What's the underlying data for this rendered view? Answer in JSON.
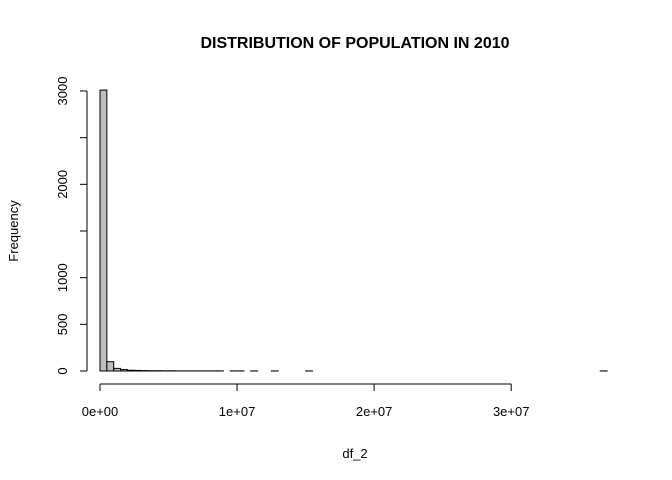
{
  "chart_data": {
    "type": "bar",
    "title": "DISTRIBUTION OF POPULATION IN 2010",
    "xlabel": "df_2",
    "ylabel": "Frequency",
    "xlim": [
      0,
      37500000
    ],
    "ylim": [
      0,
      3000
    ],
    "x_ticks": [
      {
        "value": 0,
        "label": "0e+00"
      },
      {
        "value": 10000000,
        "label": "1e+07"
      },
      {
        "value": 20000000,
        "label": "2e+07"
      },
      {
        "value": 30000000,
        "label": "3e+07"
      }
    ],
    "y_ticks": [
      {
        "value": 0,
        "label": "0"
      },
      {
        "value": 500,
        "label": "500"
      },
      {
        "value": 1000,
        "label": "1000"
      },
      {
        "value": 1500,
        "label": ""
      },
      {
        "value": 2000,
        "label": "2000"
      },
      {
        "value": 2500,
        "label": ""
      },
      {
        "value": 3000,
        "label": "3000"
      }
    ],
    "bin_width": 500000,
    "bin_start": 0,
    "values": [
      3010,
      100,
      28,
      15,
      8,
      6,
      4,
      3,
      3,
      2,
      2,
      1,
      1,
      1,
      1,
      1,
      1,
      1,
      0,
      1,
      1,
      0,
      1,
      0,
      0,
      1,
      0,
      0,
      0,
      0,
      1,
      0,
      0,
      0,
      0,
      0,
      0,
      0,
      0,
      0,
      0,
      0,
      0,
      0,
      0,
      0,
      0,
      0,
      0,
      0,
      0,
      0,
      0,
      0,
      0,
      0,
      0,
      0,
      0,
      0,
      0,
      0,
      0,
      0,
      0,
      0,
      0,
      0,
      0,
      0,
      0,
      0,
      0,
      1
    ],
    "bar_fill": "#bebebe",
    "bar_stroke": "#000000",
    "grid": false,
    "legend": "none"
  }
}
